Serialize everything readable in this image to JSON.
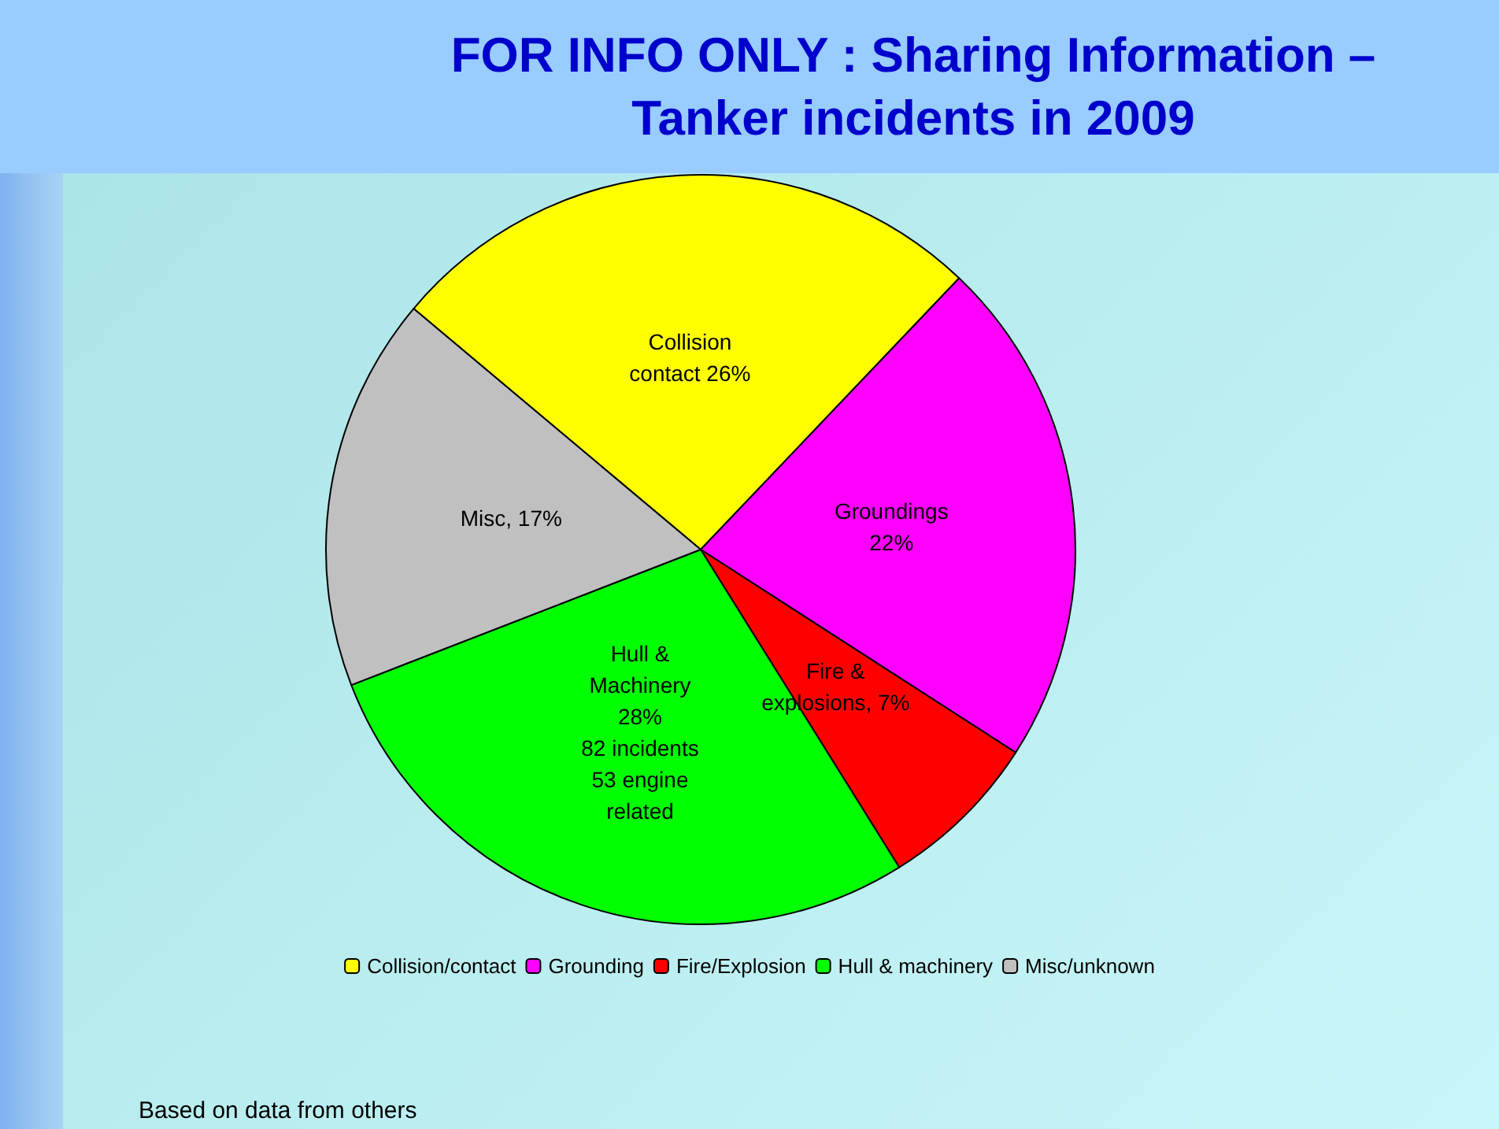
{
  "chart_data": {
    "type": "pie",
    "title": "FOR INFO ONLY : Sharing Information –\nTanker incidents in 2009",
    "categories": [
      "Collision/contact",
      "Grounding",
      "Fire/Explosion",
      "Hull & machinery",
      "Misc/unknown"
    ],
    "values": [
      26,
      22,
      7,
      28,
      17
    ],
    "colors": [
      "#ffff00",
      "#ff00ff",
      "#ff0000",
      "#00ff00",
      "#c0c0c0"
    ],
    "value_labels": [
      "Collision\ncontact 26%",
      "Groundings\n22%",
      "Fire &\nexplosions, 7%",
      "Hull &\nMachinery\n28%\n82 incidents\n53 engine\nrelated",
      "Misc, 17%"
    ],
    "legend": "bottom",
    "annotations": [
      "Based on data from others"
    ]
  }
}
